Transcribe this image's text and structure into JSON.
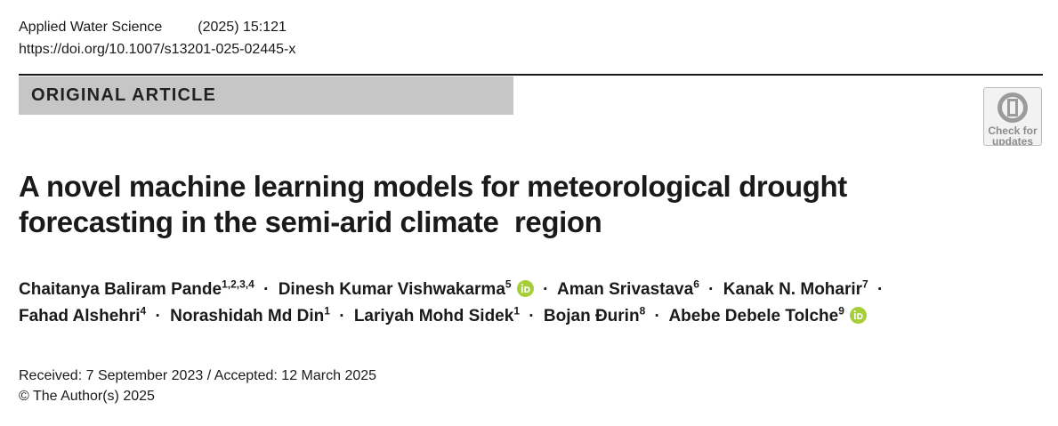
{
  "header": {
    "journal": "Applied Water Science",
    "volume": "(2025) 15:121",
    "doi": "https://doi.org/10.1007/s13201-025-02445-x"
  },
  "article_type": "ORIGINAL ARTICLE",
  "check_updates": {
    "line1": "Check for",
    "line2": "updates"
  },
  "title": {
    "line1": "A novel machine learning models for meteorological drought",
    "line2": "forecasting in the semi-arid climate  region"
  },
  "authors": {
    "line1": [
      {
        "name": "Chaitanya Baliram Pande",
        "aff": "1,2,3,4",
        "orcid": false
      },
      {
        "name": "Dinesh Kumar Vishwakarma",
        "aff": "5",
        "orcid": true
      },
      {
        "name": "Aman Srivastava",
        "aff": "6",
        "orcid": false
      },
      {
        "name": "Kanak N. Moharir",
        "aff": "7",
        "orcid": false
      }
    ],
    "line2": [
      {
        "name": "Fahad Alshehri",
        "aff": "4",
        "orcid": false
      },
      {
        "name": "Norashidah Md Din",
        "aff": "1",
        "orcid": false
      },
      {
        "name": "Lariyah Mohd Sidek",
        "aff": "1",
        "orcid": false
      },
      {
        "name": "Bojan Đurin",
        "aff": "8",
        "orcid": false
      },
      {
        "name": "Abebe Debele Tolche",
        "aff": "9",
        "orcid": true
      }
    ],
    "separator": "·"
  },
  "dates": {
    "received_accepted": "Received: 7 September 2023 / Accepted: 12 March 2025",
    "copyright": "© The Author(s) 2025"
  },
  "colors": {
    "orcid": "#a6ce39",
    "article_type_bg": "#c6c6c6"
  },
  "icons": {
    "orcid": "orcid-icon",
    "check_updates": "check-for-updates-icon"
  }
}
